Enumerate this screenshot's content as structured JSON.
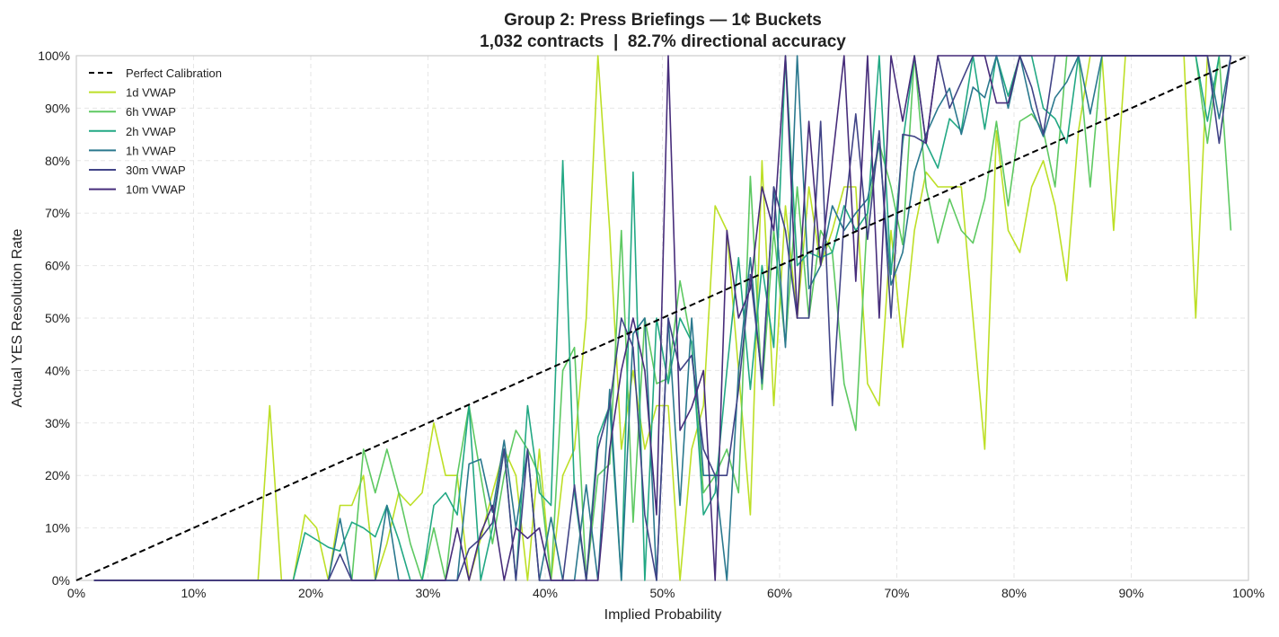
{
  "chart_data": {
    "type": "line",
    "title": "Group 2: Press Briefings — 1¢ Buckets",
    "subtitle": "1,032 contracts  |  82.7% directional accuracy",
    "xlabel": "Implied Probability",
    "ylabel": "Actual YES Resolution Rate",
    "xlim": [
      0,
      100
    ],
    "ylim": [
      0,
      100
    ],
    "xticks": [
      "0%",
      "10%",
      "20%",
      "30%",
      "40%",
      "50%",
      "60%",
      "70%",
      "80%",
      "90%",
      "100%"
    ],
    "yticks": [
      "0%",
      "10%",
      "20%",
      "30%",
      "40%",
      "50%",
      "60%",
      "70%",
      "80%",
      "90%",
      "100%"
    ],
    "grid": true,
    "legend_position": "top-left",
    "x_start": 1.5,
    "x_step": 1,
    "reference": {
      "name": "Perfect Calibration",
      "color": "#000000",
      "x": [
        0,
        100
      ],
      "y": [
        0,
        100
      ]
    },
    "series": [
      {
        "name": "1d VWAP",
        "color": "#bddf26",
        "values": [
          0,
          0,
          0,
          0,
          0,
          0,
          0,
          0,
          0,
          0,
          0,
          0,
          0,
          0,
          0,
          33.3,
          0,
          0,
          12.5,
          10,
          0,
          14.3,
          14.3,
          20,
          0,
          7,
          16.7,
          14.3,
          16.7,
          30,
          20,
          20,
          0,
          8,
          16.7,
          25,
          20,
          0,
          25,
          0,
          20,
          25,
          50,
          100,
          66.7,
          25,
          40,
          25,
          33.3,
          33.3,
          0,
          25,
          33.3,
          71.4,
          66.7,
          40,
          12.5,
          80,
          33.3,
          71.4,
          50,
          75,
          60,
          66.7,
          75,
          75,
          37.5,
          33.3,
          66.7,
          44.4,
          66.7,
          77.8,
          75,
          75,
          75,
          50,
          25,
          85.7,
          66.7,
          62.5,
          75,
          80,
          71.4,
          57.1,
          85.7,
          100,
          100,
          66.7,
          100,
          100,
          100,
          100,
          100,
          100,
          50,
          100,
          100,
          100
        ]
      },
      {
        "name": "6h VWAP",
        "color": "#5ec962",
        "values": [
          0,
          0,
          0,
          0,
          0,
          0,
          0,
          0,
          0,
          0,
          0,
          0,
          0,
          0,
          0,
          0,
          0,
          0,
          0,
          0,
          0,
          0,
          0,
          25,
          16.7,
          25,
          16.7,
          7,
          0,
          10,
          0,
          20,
          33.3,
          20,
          7,
          20,
          28.6,
          25,
          20,
          0,
          40,
          44.4,
          0,
          20,
          22.2,
          66.7,
          11.1,
          50,
          37.5,
          38.5,
          57.1,
          45,
          16.7,
          20,
          25,
          16.7,
          77,
          36.4,
          66.7,
          45,
          75,
          50,
          66.7,
          62.5,
          37.5,
          28.6,
          70,
          83.3,
          75,
          64,
          100,
          75,
          64.3,
          72.7,
          66.7,
          64.3,
          72.7,
          87.5,
          71.4,
          87.5,
          88.9,
          85.7,
          75,
          100,
          100,
          75,
          100,
          100,
          100,
          100,
          100,
          100,
          100,
          100,
          100,
          83.3,
          100,
          66.7
        ]
      },
      {
        "name": "2h VWAP",
        "color": "#22a884",
        "values": [
          0,
          0,
          0,
          0,
          0,
          0,
          0,
          0,
          0,
          0,
          0,
          0,
          0,
          0,
          0,
          0,
          0,
          0,
          9.1,
          7.7,
          6.3,
          5.6,
          11.1,
          10,
          8.3,
          14.3,
          7.7,
          0,
          0,
          14.3,
          16.7,
          12.5,
          33.3,
          0,
          10,
          25,
          0,
          33.3,
          16.7,
          14.3,
          80,
          16.7,
          0,
          27.3,
          33.3,
          0,
          77.8,
          0,
          50,
          37.5,
          50,
          45.5,
          12.5,
          16.7,
          40,
          61.5,
          36.4,
          60,
          44.4,
          100,
          60,
          62.5,
          61.5,
          62.5,
          71.4,
          66.7,
          70,
          100,
          58.3,
          83.3,
          100,
          83.3,
          78.6,
          88,
          85.7,
          100,
          86,
          100,
          92.3,
          100,
          100,
          90,
          88,
          83.3,
          100,
          100,
          100,
          100,
          100,
          100,
          100,
          100,
          100,
          100,
          100,
          87.5,
          100,
          100
        ]
      },
      {
        "name": "1h VWAP",
        "color": "#2a788e",
        "values": [
          0,
          0,
          0,
          0,
          0,
          0,
          0,
          0,
          0,
          0,
          0,
          0,
          0,
          0,
          0,
          0,
          0,
          0,
          0,
          0,
          0,
          11.8,
          0,
          0,
          0,
          14.3,
          0,
          0,
          0,
          0,
          0,
          0,
          22.2,
          23.1,
          13,
          26.7,
          10,
          25,
          0,
          12,
          0,
          0,
          18.2,
          0,
          36.4,
          0,
          47,
          50,
          0,
          50,
          14.3,
          50,
          20,
          20,
          0,
          40,
          61.5,
          37.5,
          75,
          44.4,
          100,
          55.6,
          60,
          71.4,
          66.7,
          70,
          72.7,
          83.3,
          56.3,
          62.5,
          77.8,
          85,
          90,
          93.8,
          85,
          94,
          92,
          100,
          90,
          100,
          90,
          84.6,
          92,
          95,
          100,
          88.9,
          100,
          100,
          100,
          100,
          100,
          100,
          100,
          100,
          100,
          100,
          88,
          100
        ]
      },
      {
        "name": "30m VWAP",
        "color": "#414487",
        "values": [
          0,
          0,
          0,
          0,
          0,
          0,
          0,
          0,
          0,
          0,
          0,
          0,
          0,
          0,
          0,
          0,
          0,
          0,
          0,
          0,
          0,
          5,
          0,
          0,
          0,
          0,
          0,
          0,
          0,
          0,
          0,
          0,
          6,
          8,
          11,
          25,
          0,
          25,
          0,
          0,
          0,
          18.2,
          0,
          25,
          33.3,
          50,
          44.4,
          12.5,
          0,
          50,
          40,
          42.9,
          25,
          20,
          20,
          36.4,
          58.3,
          38.5,
          75,
          66.7,
          50,
          50,
          87.5,
          33.3,
          68.8,
          88.9,
          65,
          85.7,
          50,
          85,
          84.6,
          83.3,
          100,
          90,
          95,
          100,
          100,
          100,
          100,
          100,
          94,
          85,
          100,
          100,
          100,
          100,
          100,
          100,
          100,
          100,
          100,
          100,
          100,
          100,
          100,
          100,
          83.3,
          100
        ]
      },
      {
        "name": "10m VWAP",
        "color": "#472d7b",
        "values": [
          0,
          0,
          0,
          0,
          0,
          0,
          0,
          0,
          0,
          0,
          0,
          0,
          0,
          0,
          0,
          0,
          0,
          0,
          0,
          0,
          0,
          0,
          0,
          0,
          0,
          0,
          0,
          0,
          0,
          0,
          0,
          10,
          0,
          9,
          14.3,
          0,
          10,
          8,
          10,
          0,
          0,
          0,
          0,
          0,
          25,
          40,
          50,
          40,
          12.5,
          100,
          28.6,
          33,
          40,
          0,
          66.7,
          50,
          55.6,
          75,
          66.7,
          100,
          50,
          87.5,
          60,
          80,
          100,
          57,
          100,
          50,
          100,
          87.5,
          100,
          83.3,
          100,
          100,
          100,
          100,
          100,
          91,
          91,
          100,
          100,
          100,
          100,
          100,
          100,
          100,
          100,
          100,
          100,
          100,
          100,
          100,
          100,
          100,
          100,
          100,
          100,
          100
        ]
      }
    ]
  }
}
